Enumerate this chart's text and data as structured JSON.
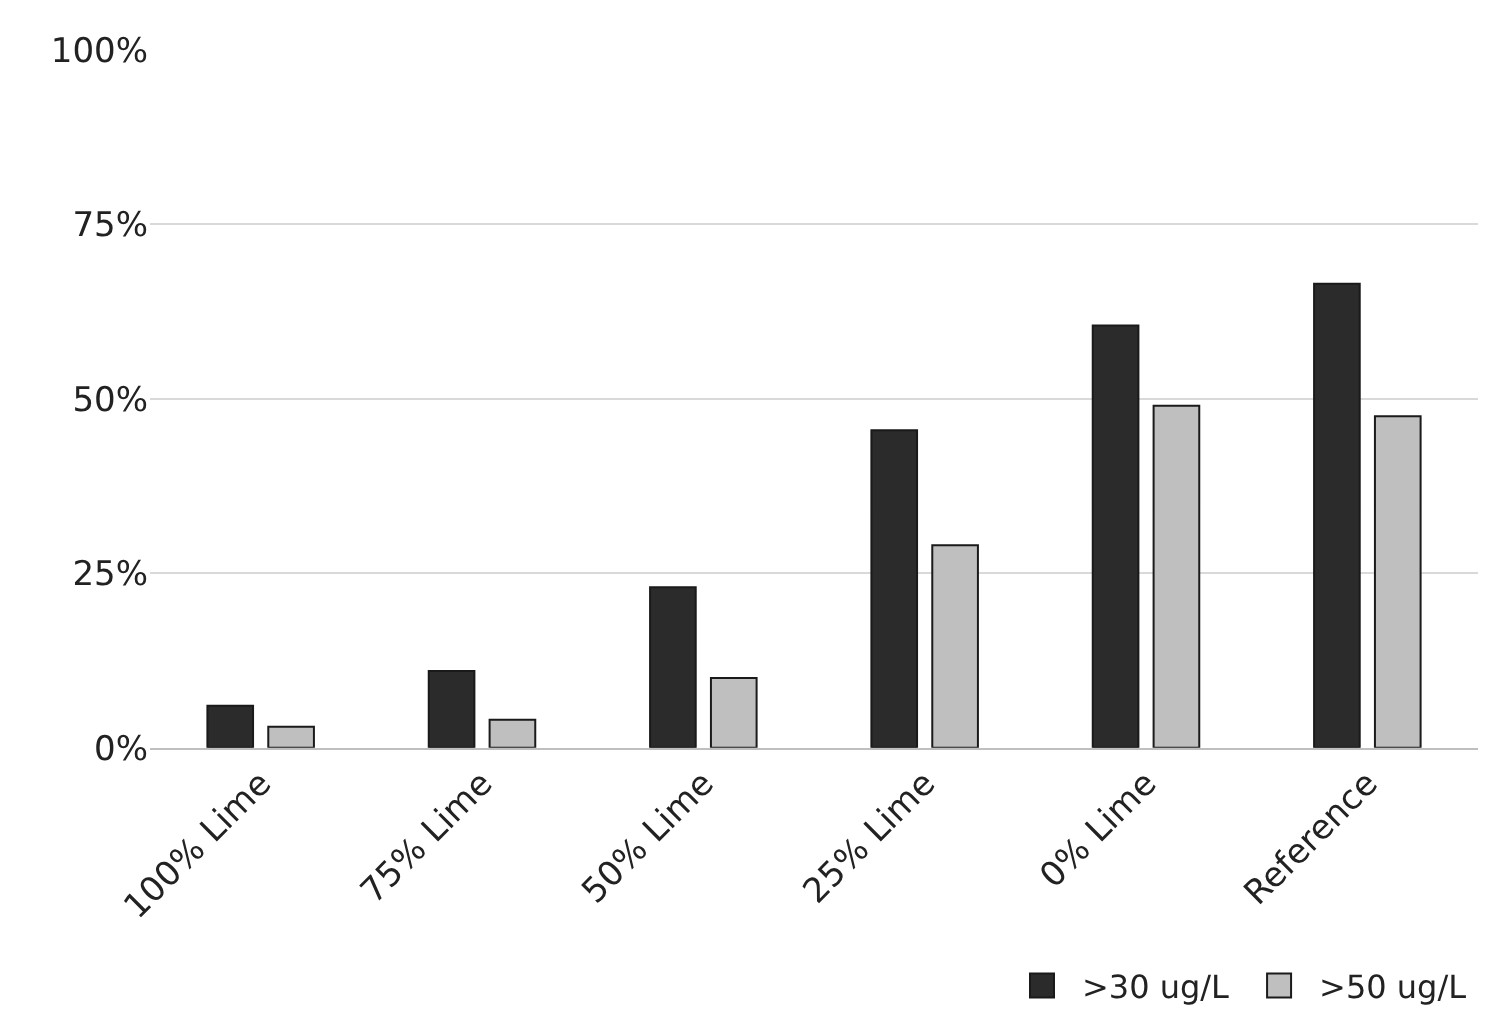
{
  "chart_data": {
    "type": "bar",
    "categories": [
      "100% Lime",
      "75% Lime",
      "50% Lime",
      "25% Lime",
      "0% Lime",
      "Reference"
    ],
    "series": [
      {
        "name": ">30 ug/L",
        "color": "#2b2b2b",
        "values": [
          6,
          11,
          23,
          45.5,
          60.5,
          66.5
        ]
      },
      {
        "name": ">50 ug/L",
        "color": "#bfbfbf",
        "values": [
          3,
          4,
          10,
          29,
          49,
          47.5
        ]
      }
    ],
    "ylim": [
      0,
      100
    ],
    "yticks": [
      {
        "value": 0,
        "label": "0%"
      },
      {
        "value": 25,
        "label": "25%"
      },
      {
        "value": 50,
        "label": "50%"
      },
      {
        "value": 75,
        "label": "75%"
      },
      {
        "value": 100,
        "label": "100%"
      }
    ],
    "grid": "y",
    "legend": "bottom right"
  }
}
